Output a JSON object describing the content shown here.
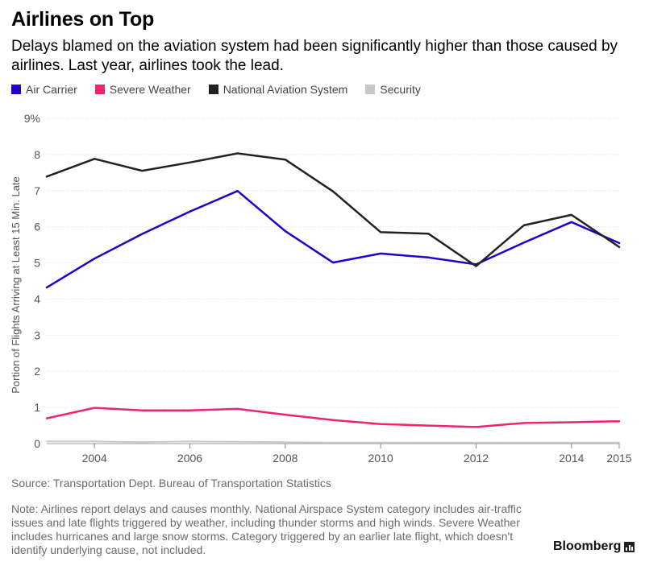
{
  "title": "Airlines on Top",
  "subtitle": "Delays blamed on the aviation system had been significantly higher than those caused by airlines. Last year, airlines took the lead.",
  "source": "Source: Transportation Dept. Bureau of Transportation Statistics",
  "note": "Note: Airlines report delays and causes monthly. National Airspace System category includes air-traffic issues and late flights triggered by weather, including thunder storms and high winds. Severe Weather includes hurricanes and large snow storms. Category triggered by an earlier late flight, which doesn't identify underlying cause, not included.",
  "brand": "Bloomberg",
  "brand_icon": "bloomberg-chart-icon",
  "chart_data": {
    "type": "line",
    "ylabel": "Portion of Flights Arriving at Least 15 Min. Late",
    "xlabel": "",
    "ylim": [
      0,
      9
    ],
    "xlim": [
      2003,
      2015
    ],
    "yticks": [
      0,
      1,
      2,
      3,
      4,
      5,
      6,
      7,
      8,
      9
    ],
    "ytick_labels": [
      "0",
      "1",
      "2",
      "3",
      "4",
      "5",
      "6",
      "7",
      "8",
      "9%"
    ],
    "xticks": [
      2004,
      2006,
      2008,
      2010,
      2012,
      2014,
      2015
    ],
    "xtick_labels": [
      "2004",
      "2006",
      "2008",
      "2010",
      "2012",
      "2014",
      "2015"
    ],
    "grid": true,
    "legend_position": "top-left",
    "x": [
      2003,
      2004,
      2005,
      2006,
      2007,
      2008,
      2009,
      2010,
      2011,
      2012,
      2013,
      2014,
      2015
    ],
    "series": [
      {
        "name": "Air Carrier",
        "color": "#2200cc",
        "values": [
          4.32,
          5.12,
          5.8,
          6.42,
          6.99,
          5.88,
          5.01,
          5.26,
          5.15,
          4.96,
          5.56,
          6.13,
          5.55
        ]
      },
      {
        "name": "Severe Weather",
        "color": "#f0236f",
        "values": [
          0.7,
          0.99,
          0.92,
          0.92,
          0.96,
          0.8,
          0.65,
          0.54,
          0.5,
          0.46,
          0.57,
          0.59,
          0.62
        ]
      },
      {
        "name": "National Aviation System",
        "color": "#222222",
        "values": [
          7.39,
          7.88,
          7.55,
          7.78,
          8.03,
          7.86,
          6.98,
          5.85,
          5.81,
          4.91,
          6.04,
          6.33,
          5.44
        ]
      },
      {
        "name": "Security",
        "color": "#c8c8c8",
        "values": [
          0.06,
          0.06,
          0.04,
          0.06,
          0.05,
          0.04,
          0.03,
          0.03,
          0.03,
          0.03,
          0.03,
          0.03,
          0.03
        ]
      }
    ]
  }
}
